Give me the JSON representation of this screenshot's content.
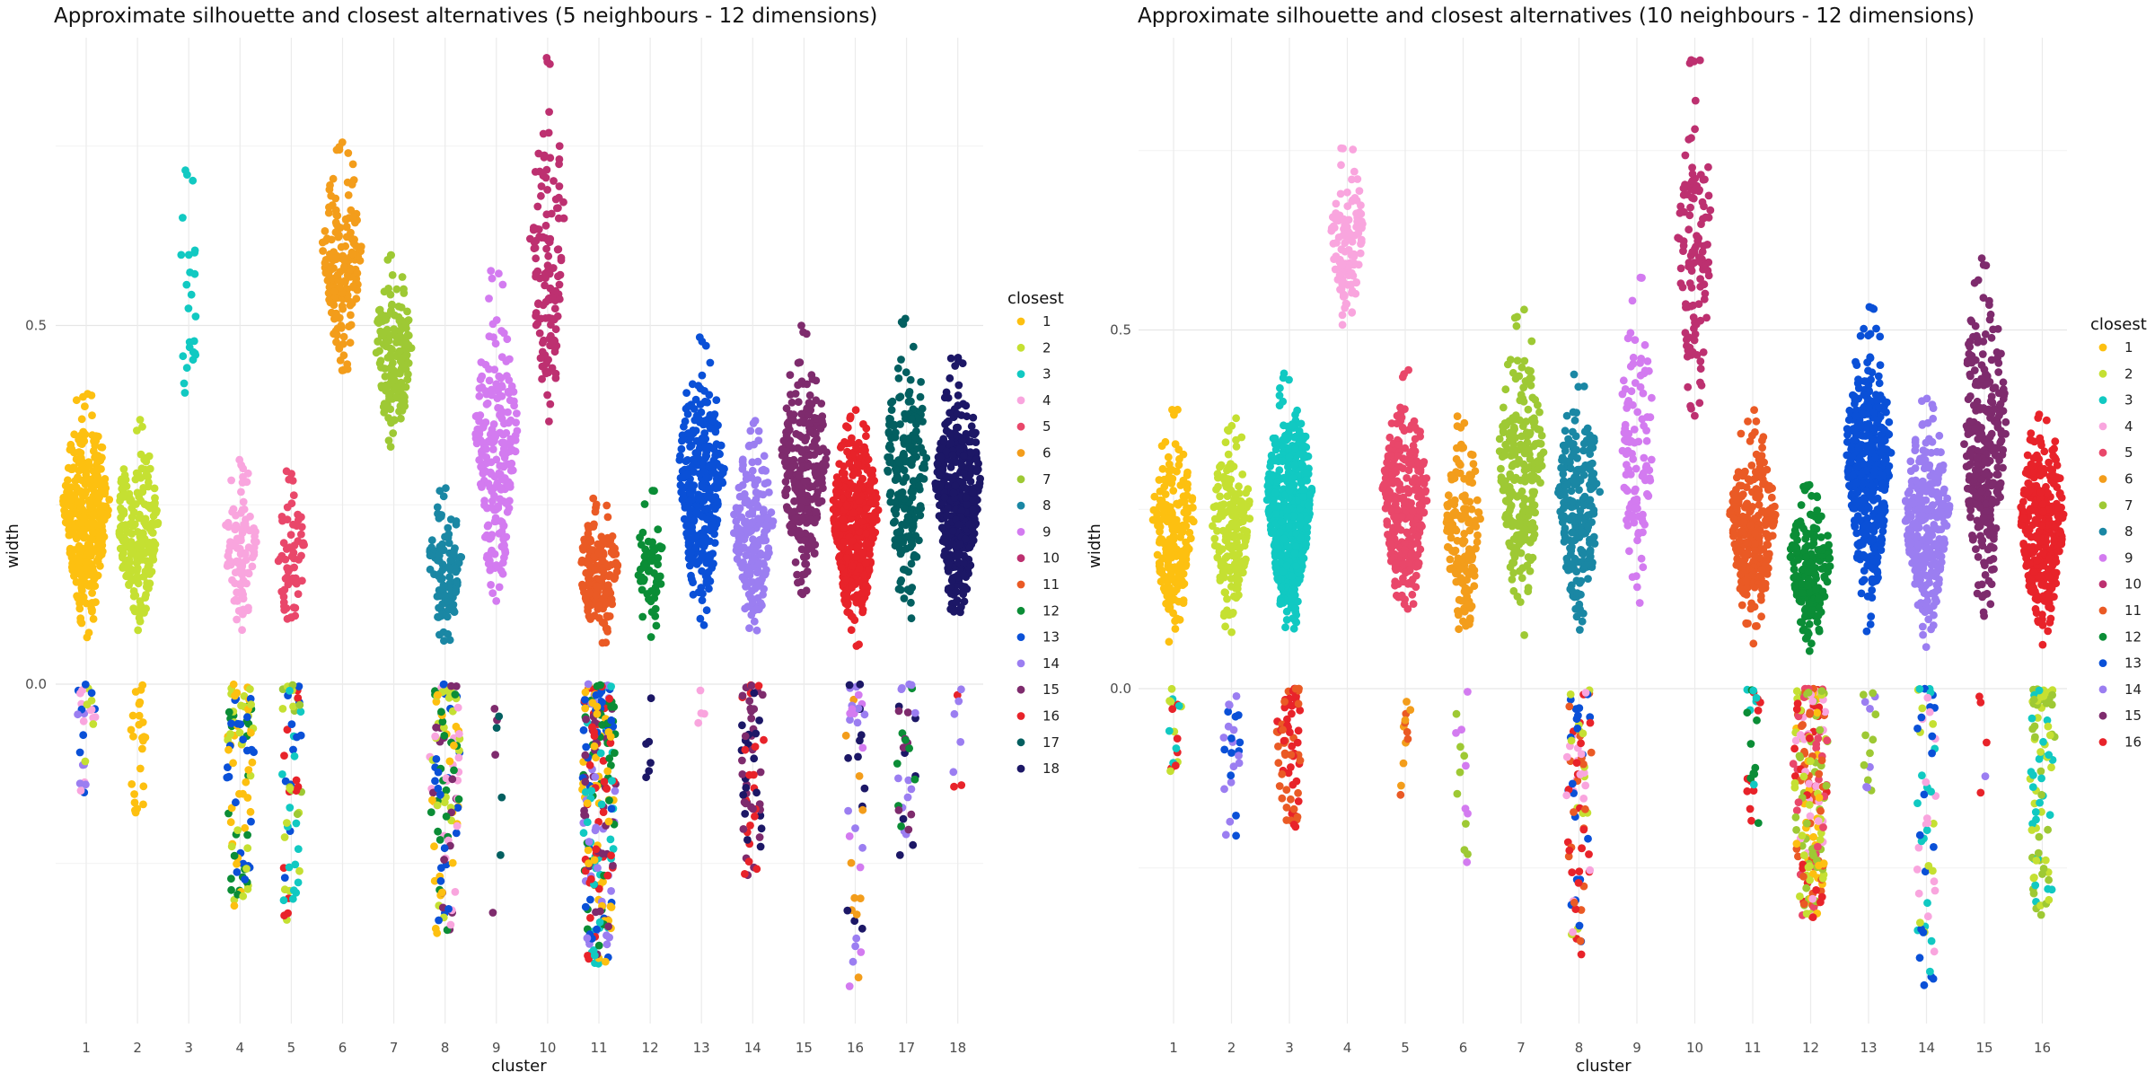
{
  "palette": {
    "1": "#fdc010",
    "2": "#c5e032",
    "3": "#11c9c2",
    "4": "#f9a5de",
    "5": "#e9476a",
    "6": "#f39d1b",
    "7": "#9ec934",
    "8": "#1a87a4",
    "9": "#d37bf0",
    "10": "#bd3070",
    "11": "#ea5a25",
    "12": "#0b8d36",
    "13": "#0a50d7",
    "14": "#9b7ef1",
    "15": "#7e2b6d",
    "16": "#e8232a",
    "17": "#035f60",
    "18": "#1c1766"
  },
  "chart_data": [
    {
      "type": "scatter",
      "subtype": "beeswarm",
      "title": "Approximate silhouette and closest alternatives (5 neighbours - 12 dimensions)",
      "xlabel": "cluster",
      "ylabel": "width",
      "ylim": [
        -0.47,
        0.92
      ],
      "y_ticks": [
        0.0,
        0.5
      ],
      "y_tick_labels": [
        "0.0",
        "0.5"
      ],
      "categories": [
        "1",
        "2",
        "3",
        "4",
        "5",
        "6",
        "7",
        "8",
        "9",
        "10",
        "11",
        "12",
        "13",
        "14",
        "15",
        "16",
        "17",
        "18"
      ],
      "legend_title": "closest",
      "legend": [
        "1",
        "2",
        "3",
        "4",
        "5",
        "6",
        "7",
        "8",
        "9",
        "10",
        "11",
        "12",
        "13",
        "14",
        "15",
        "16",
        "17",
        "18"
      ],
      "legend_position": "right",
      "clusters": [
        {
          "cluster": "1",
          "n": 400,
          "pos": [
            -0.16,
            0.41
          ],
          "neg": [
            -0.16,
            0
          ],
          "neg_n": 30,
          "neg_colors": [
            "4",
            "2",
            "14",
            "13"
          ]
        },
        {
          "cluster": "2",
          "n": 230,
          "pos": [
            -0.18,
            0.37
          ],
          "neg": [
            -0.18,
            0
          ],
          "neg_n": 25,
          "neg_colors": [
            "1"
          ]
        },
        {
          "cluster": "3",
          "n": 22,
          "pos": [
            0.26,
            0.72
          ],
          "neg": null,
          "neg_n": 0,
          "neg_colors": []
        },
        {
          "cluster": "4",
          "n": 200,
          "pos": [
            -0.31,
            0.32
          ],
          "neg": [
            -0.31,
            0
          ],
          "neg_n": 100,
          "neg_colors": [
            "1",
            "13",
            "2",
            "12"
          ]
        },
        {
          "cluster": "5",
          "n": 120,
          "pos": [
            -0.33,
            0.3
          ],
          "neg": [
            -0.33,
            0
          ],
          "neg_n": 60,
          "neg_colors": [
            "7",
            "2",
            "3",
            "16",
            "13"
          ]
        },
        {
          "cluster": "6",
          "n": 180,
          "pos": [
            0.37,
            0.76
          ],
          "neg": null,
          "neg_n": 0,
          "neg_colors": []
        },
        {
          "cluster": "7",
          "n": 160,
          "pos": [
            0.26,
            0.61
          ],
          "neg": null,
          "neg_n": 0,
          "neg_colors": []
        },
        {
          "cluster": "8",
          "n": 230,
          "pos": [
            -0.35,
            0.28
          ],
          "neg": [
            -0.35,
            0
          ],
          "neg_n": 130,
          "neg_colors": [
            "2",
            "1",
            "13",
            "15",
            "12",
            "4"
          ]
        },
        {
          "cluster": "9",
          "n": 230,
          "pos": [
            -0.33,
            0.58
          ],
          "neg": [
            -0.33,
            0
          ],
          "neg_n": 8,
          "neg_colors": [
            "17",
            "15"
          ]
        },
        {
          "cluster": "10",
          "n": 130,
          "pos": [
            0.23,
            0.88
          ],
          "neg": null,
          "neg_n": 0,
          "neg_colors": []
        },
        {
          "cluster": "11",
          "n": 420,
          "pos": [
            -0.39,
            0.26
          ],
          "neg": [
            -0.39,
            0
          ],
          "neg_n": 260,
          "neg_colors": [
            "13",
            "15",
            "1",
            "14",
            "3",
            "12",
            "16"
          ]
        },
        {
          "cluster": "12",
          "n": 60,
          "pos": [
            -0.14,
            0.27
          ],
          "neg": [
            -0.14,
            0
          ],
          "neg_n": 6,
          "neg_colors": [
            "18"
          ]
        },
        {
          "cluster": "13",
          "n": 320,
          "pos": [
            -0.06,
            0.49
          ],
          "neg": [
            -0.06,
            0
          ],
          "neg_n": 4,
          "neg_colors": [
            "4"
          ]
        },
        {
          "cluster": "14",
          "n": 260,
          "pos": [
            -0.28,
            0.37
          ],
          "neg": [
            -0.28,
            0
          ],
          "neg_n": 70,
          "neg_colors": [
            "16",
            "15",
            "18"
          ]
        },
        {
          "cluster": "15",
          "n": 260,
          "pos": [
            0.03,
            0.5
          ],
          "neg": null,
          "neg_n": 0,
          "neg_colors": []
        },
        {
          "cluster": "16",
          "n": 480,
          "pos": [
            -0.43,
            0.39
          ],
          "neg": [
            -0.43,
            0
          ],
          "neg_n": 45,
          "neg_colors": [
            "18",
            "6",
            "14",
            "9"
          ]
        },
        {
          "cluster": "17",
          "n": 240,
          "pos": [
            -0.28,
            0.52
          ],
          "neg": [
            -0.28,
            0
          ],
          "neg_n": 35,
          "neg_colors": [
            "15",
            "18",
            "12",
            "14"
          ]
        },
        {
          "cluster": "18",
          "n": 450,
          "pos": [
            -0.17,
            0.46
          ],
          "neg": [
            -0.17,
            0
          ],
          "neg_n": 8,
          "neg_colors": [
            "16",
            "14"
          ]
        }
      ]
    },
    {
      "type": "scatter",
      "subtype": "beeswarm",
      "title": "Approximate silhouette and closest alternatives (10 neighbours - 12 dimensions)",
      "xlabel": "cluster",
      "ylabel": "width",
      "ylim": [
        -0.47,
        0.92
      ],
      "y_ticks": [
        0.0,
        0.5
      ],
      "y_tick_labels": [
        "0.0",
        "0.5"
      ],
      "categories": [
        "1",
        "2",
        "3",
        "4",
        "5",
        "6",
        "7",
        "8",
        "9",
        "10",
        "11",
        "12",
        "13",
        "14",
        "15",
        "16"
      ],
      "legend_title": "closest",
      "legend": [
        "1",
        "2",
        "3",
        "4",
        "5",
        "6",
        "7",
        "8",
        "9",
        "10",
        "11",
        "12",
        "13",
        "14",
        "15",
        "16"
      ],
      "legend_position": "right",
      "clusters": [
        {
          "cluster": "1",
          "n": 220,
          "pos": [
            -0.12,
            0.39
          ],
          "neg": [
            -0.12,
            0
          ],
          "neg_n": 18,
          "neg_colors": [
            "16",
            "3",
            "2"
          ]
        },
        {
          "cluster": "2",
          "n": 200,
          "pos": [
            -0.21,
            0.38
          ],
          "neg": [
            -0.21,
            0
          ],
          "neg_n": 25,
          "neg_colors": [
            "13",
            "14"
          ]
        },
        {
          "cluster": "3",
          "n": 600,
          "pos": [
            -0.2,
            0.44
          ],
          "neg": [
            -0.2,
            0
          ],
          "neg_n": 70,
          "neg_colors": [
            "11",
            "16"
          ]
        },
        {
          "cluster": "4",
          "n": 110,
          "pos": [
            0.44,
            0.76
          ],
          "neg": null,
          "neg_n": 0,
          "neg_colors": []
        },
        {
          "cluster": "5",
          "n": 300,
          "pos": [
            -0.15,
            0.45
          ],
          "neg": [
            -0.15,
            0
          ],
          "neg_n": 12,
          "neg_colors": [
            "6",
            "11"
          ]
        },
        {
          "cluster": "6",
          "n": 160,
          "pos": [
            -0.26,
            0.38
          ],
          "neg": [
            -0.26,
            0
          ],
          "neg_n": 15,
          "neg_colors": [
            "9",
            "7"
          ]
        },
        {
          "cluster": "7",
          "n": 240,
          "pos": [
            -0.05,
            0.53
          ],
          "neg": null,
          "neg_n": 0,
          "neg_colors": []
        },
        {
          "cluster": "8",
          "n": 300,
          "pos": [
            -0.38,
            0.44
          ],
          "neg": [
            -0.38,
            0
          ],
          "neg_n": 90,
          "neg_colors": [
            "11",
            "13",
            "16",
            "2",
            "4"
          ]
        },
        {
          "cluster": "9",
          "n": 110,
          "pos": [
            -0.01,
            0.58
          ],
          "neg": null,
          "neg_n": 0,
          "neg_colors": []
        },
        {
          "cluster": "10",
          "n": 120,
          "pos": [
            0.24,
            0.88
          ],
          "neg": null,
          "neg_n": 0,
          "neg_colors": []
        },
        {
          "cluster": "11",
          "n": 320,
          "pos": [
            -0.19,
            0.39
          ],
          "neg": [
            -0.19,
            0
          ],
          "neg_n": 25,
          "neg_colors": [
            "3",
            "12",
            "16"
          ]
        },
        {
          "cluster": "12",
          "n": 420,
          "pos": [
            -0.32,
            0.3
          ],
          "neg": [
            -0.32,
            0
          ],
          "neg_n": 220,
          "neg_colors": [
            "16",
            "11",
            "1",
            "7",
            "5",
            "4",
            "2"
          ]
        },
        {
          "cluster": "13",
          "n": 450,
          "pos": [
            -0.18,
            0.54
          ],
          "neg": [
            -0.18,
            0
          ],
          "neg_n": 15,
          "neg_colors": [
            "14",
            "7"
          ]
        },
        {
          "cluster": "14",
          "n": 350,
          "pos": [
            -0.42,
            0.41
          ],
          "neg": [
            -0.42,
            0
          ],
          "neg_n": 60,
          "neg_colors": [
            "4",
            "13",
            "2",
            "3"
          ]
        },
        {
          "cluster": "15",
          "n": 300,
          "pos": [
            -0.15,
            0.6
          ],
          "neg": [
            -0.15,
            0
          ],
          "neg_n": 5,
          "neg_colors": [
            "16",
            "14"
          ]
        },
        {
          "cluster": "16",
          "n": 420,
          "pos": [
            -0.32,
            0.39
          ],
          "neg": [
            -0.32,
            0
          ],
          "neg_n": 90,
          "neg_colors": [
            "3",
            "2",
            "7"
          ]
        }
      ]
    }
  ]
}
